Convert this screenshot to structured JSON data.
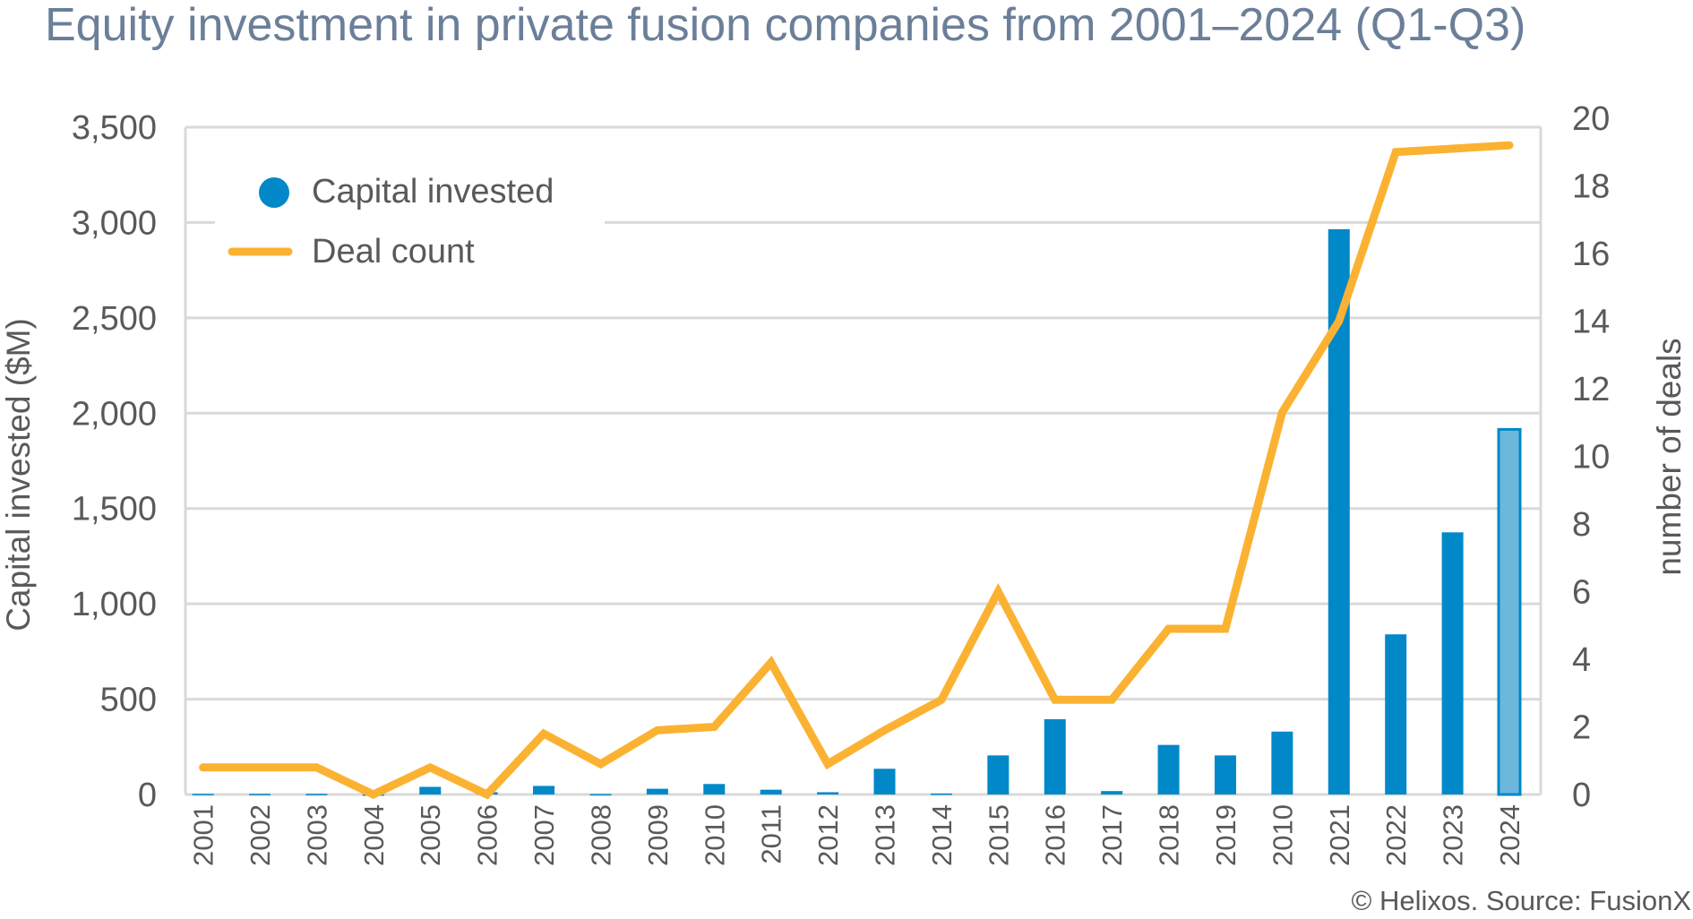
{
  "chart_data": {
    "type": "bar+line",
    "title": "Equity investment in private fusion companies from 2001–2024 (Q1-Q3)",
    "ylabel_left": "Capital invested ($M)",
    "ylabel_right": "number of deals",
    "ylim_left": [
      0,
      3500
    ],
    "yticks_left": [
      "0",
      "500",
      "1,000",
      "1,500",
      "2,000",
      "2,500",
      "3,000",
      "3,500"
    ],
    "ylim_right": [
      0,
      20
    ],
    "yticks_right": [
      "0",
      "2",
      "4",
      "6",
      "8",
      "10",
      "12",
      "14",
      "16",
      "18",
      "20"
    ],
    "grid": true,
    "legend_position": "top-left",
    "categories": [
      "2001",
      "2002",
      "2003",
      "2004",
      "2005",
      "2006",
      "2007",
      "2008",
      "2009",
      "2010",
      "2011",
      "2012",
      "2013",
      "2014",
      "2015",
      "2016",
      "2017",
      "2018",
      "2019",
      "2010",
      "2021",
      "2022",
      "2023",
      "2024"
    ],
    "series": [
      {
        "name": "Capital invested",
        "type": "bar",
        "axis": "left",
        "color": "#0088c8",
        "highlight_last_color": "#6bb8dc",
        "values": [
          3,
          3,
          3,
          0,
          40,
          12,
          45,
          2,
          30,
          55,
          25,
          12,
          135,
          5,
          205,
          395,
          18,
          260,
          205,
          330,
          2965,
          840,
          1375,
          1915
        ]
      },
      {
        "name": "Deal count",
        "type": "line",
        "axis": "right",
        "color": "#fbb232",
        "values": [
          0.8,
          0.8,
          0.8,
          0,
          0.8,
          0,
          1.8,
          0.9,
          1.9,
          2,
          3.9,
          0.9,
          1.9,
          2.8,
          6,
          2.8,
          2.8,
          4.9,
          4.9,
          11.3,
          14,
          19,
          19.1,
          19.2
        ]
      }
    ],
    "source": "© Helixos. Source: FusionX"
  }
}
